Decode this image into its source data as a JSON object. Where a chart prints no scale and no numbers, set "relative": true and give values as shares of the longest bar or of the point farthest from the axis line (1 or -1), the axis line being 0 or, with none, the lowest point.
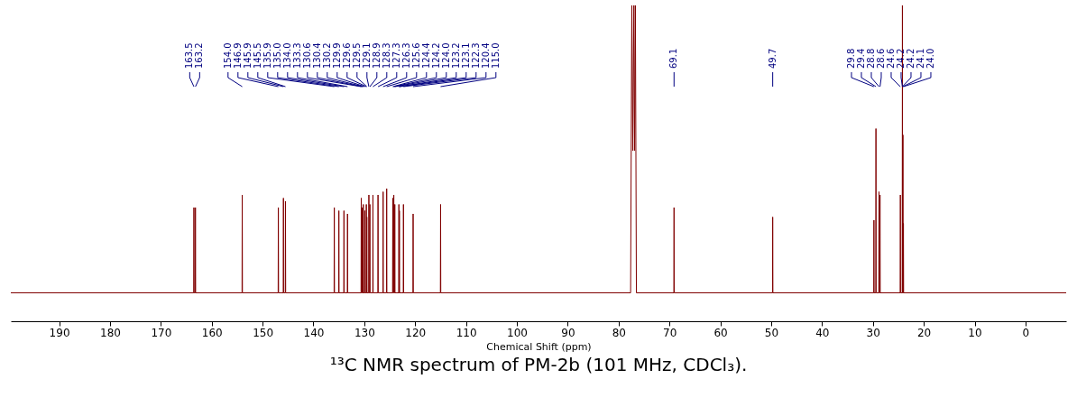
{
  "chart_data": {
    "type": "line",
    "title": "¹³C NMR spectrum of PM-2b (101 MHz, CDCl₃).",
    "xlabel": "Chemical Shift (ppm)",
    "relative": true,
    "color": "#800000",
    "xlim": [
      199.5,
      -8
    ],
    "xticks": [
      190,
      180,
      170,
      160,
      150,
      140,
      130,
      120,
      110,
      100,
      90,
      80,
      70,
      60,
      50,
      40,
      30,
      20,
      10,
      0
    ],
    "x": [
      199.5,
      163.54,
      163.5,
      163.46,
      163.24,
      163.2,
      163.16,
      154.04,
      154.0,
      153.96,
      146.94,
      146.9,
      146.86,
      145.94,
      145.9,
      145.86,
      145.54,
      145.5,
      145.46,
      135.94,
      135.9,
      135.86,
      135.04,
      135.0,
      134.96,
      134.04,
      134.0,
      133.96,
      133.34,
      133.3,
      133.26,
      130.64,
      130.6,
      130.56,
      130.44,
      130.4,
      130.36,
      130.24,
      130.2,
      130.16,
      129.94,
      129.9,
      129.86,
      129.64,
      129.6,
      129.56,
      129.54,
      129.5,
      129.46,
      129.14,
      129.1,
      129.06,
      128.94,
      128.9,
      128.86,
      128.34,
      128.3,
      128.26,
      127.34,
      127.3,
      127.26,
      126.34,
      126.3,
      126.26,
      125.64,
      125.6,
      125.56,
      124.44,
      124.4,
      124.36,
      124.24,
      124.2,
      124.16,
      124.04,
      124.0,
      123.96,
      123.24,
      123.2,
      123.16,
      123.14,
      123.1,
      123.06,
      122.34,
      122.3,
      122.26,
      120.44,
      120.4,
      120.36,
      115.04,
      115.0,
      114.96,
      77.64,
      77.4,
      77.2,
      77.0,
      76.85,
      76.7,
      76.5,
      69.14,
      69.1,
      69.06,
      49.74,
      49.7,
      49.66,
      29.84,
      29.8,
      29.76,
      29.44,
      29.4,
      29.36,
      28.84,
      28.8,
      28.76,
      28.64,
      28.6,
      28.56,
      24.64,
      24.6,
      24.56,
      24.24,
      24.2,
      24.16,
      24.14,
      24.1,
      24.06,
      24.04,
      24.0,
      23.96,
      -8
    ],
    "values": [
      0.09,
      0.09,
      0.36,
      0.09,
      0.09,
      0.36,
      0.09,
      0.09,
      0.4,
      0.09,
      0.09,
      0.36,
      0.09,
      0.09,
      0.39,
      0.09,
      0.09,
      0.38,
      0.09,
      0.09,
      0.36,
      0.09,
      0.09,
      0.35,
      0.09,
      0.09,
      0.35,
      0.09,
      0.09,
      0.34,
      0.09,
      0.09,
      0.39,
      0.09,
      0.09,
      0.36,
      0.09,
      0.09,
      0.37,
      0.09,
      0.09,
      0.35,
      0.09,
      0.09,
      0.37,
      0.09,
      0.09,
      0.33,
      0.09,
      0.09,
      0.4,
      0.09,
      0.09,
      0.37,
      0.09,
      0.09,
      0.4,
      0.09,
      0.09,
      0.4,
      0.09,
      0.09,
      0.41,
      0.09,
      0.09,
      0.42,
      0.09,
      0.09,
      0.39,
      0.09,
      0.09,
      0.4,
      0.09,
      0.09,
      0.37,
      0.09,
      0.09,
      0.37,
      0.09,
      0.09,
      0.35,
      0.09,
      0.09,
      0.37,
      0.09,
      0.09,
      0.34,
      0.09,
      0.09,
      0.37,
      0.09,
      0.09,
      1.0,
      0.54,
      1.0,
      0.54,
      1.0,
      0.09,
      0.09,
      0.36,
      0.09,
      0.09,
      0.33,
      0.09,
      0.09,
      0.32,
      0.09,
      0.09,
      0.61,
      0.09,
      0.09,
      0.41,
      0.09,
      0.09,
      0.4,
      0.09,
      0.09,
      0.4,
      0.09,
      0.09,
      1.0,
      0.09,
      0.09,
      0.59,
      0.09,
      0.09,
      0.31,
      0.09,
      0.09
    ],
    "annotations": [
      {
        "text": "163.5",
        "x": 163.5
      },
      {
        "text": "163.2",
        "x": 163.2
      },
      {
        "text": "154.0",
        "x": 154.0
      },
      {
        "text": "146.9",
        "x": 146.9
      },
      {
        "text": "145.9",
        "x": 145.9
      },
      {
        "text": "145.5",
        "x": 145.5
      },
      {
        "text": "135.9",
        "x": 135.9
      },
      {
        "text": "135.0",
        "x": 135.0
      },
      {
        "text": "134.0",
        "x": 134.0
      },
      {
        "text": "133.3",
        "x": 133.3
      },
      {
        "text": "130.6",
        "x": 130.6
      },
      {
        "text": "130.4",
        "x": 130.4
      },
      {
        "text": "130.2",
        "x": 130.2
      },
      {
        "text": "129.9",
        "x": 129.9
      },
      {
        "text": "129.6",
        "x": 129.6
      },
      {
        "text": "129.5",
        "x": 129.5
      },
      {
        "text": "129.1",
        "x": 129.1
      },
      {
        "text": "128.9",
        "x": 128.9
      },
      {
        "text": "128.3",
        "x": 128.3
      },
      {
        "text": "127.3",
        "x": 127.3
      },
      {
        "text": "126.3",
        "x": 126.3
      },
      {
        "text": "125.6",
        "x": 125.6
      },
      {
        "text": "124.4",
        "x": 124.4
      },
      {
        "text": "124.2",
        "x": 124.2
      },
      {
        "text": "124.0",
        "x": 124.0
      },
      {
        "text": "123.2",
        "x": 123.2
      },
      {
        "text": "123.1",
        "x": 123.1
      },
      {
        "text": "122.3",
        "x": 122.3
      },
      {
        "text": "120.4",
        "x": 120.4
      },
      {
        "text": "115.0",
        "x": 115.0
      },
      {
        "text": "69.1",
        "x": 69.1
      },
      {
        "text": "49.7",
        "x": 49.7
      },
      {
        "text": "29.8",
        "x": 29.8
      },
      {
        "text": "29.4",
        "x": 29.4
      },
      {
        "text": "28.8",
        "x": 28.8
      },
      {
        "text": "28.6",
        "x": 28.6
      },
      {
        "text": "24.6",
        "x": 24.6
      },
      {
        "text": "24.2",
        "x": 24.2
      },
      {
        "text": "24.2",
        "x": 24.2
      },
      {
        "text": "24.1",
        "x": 24.1
      },
      {
        "text": "24.0",
        "x": 24.0
      }
    ]
  }
}
